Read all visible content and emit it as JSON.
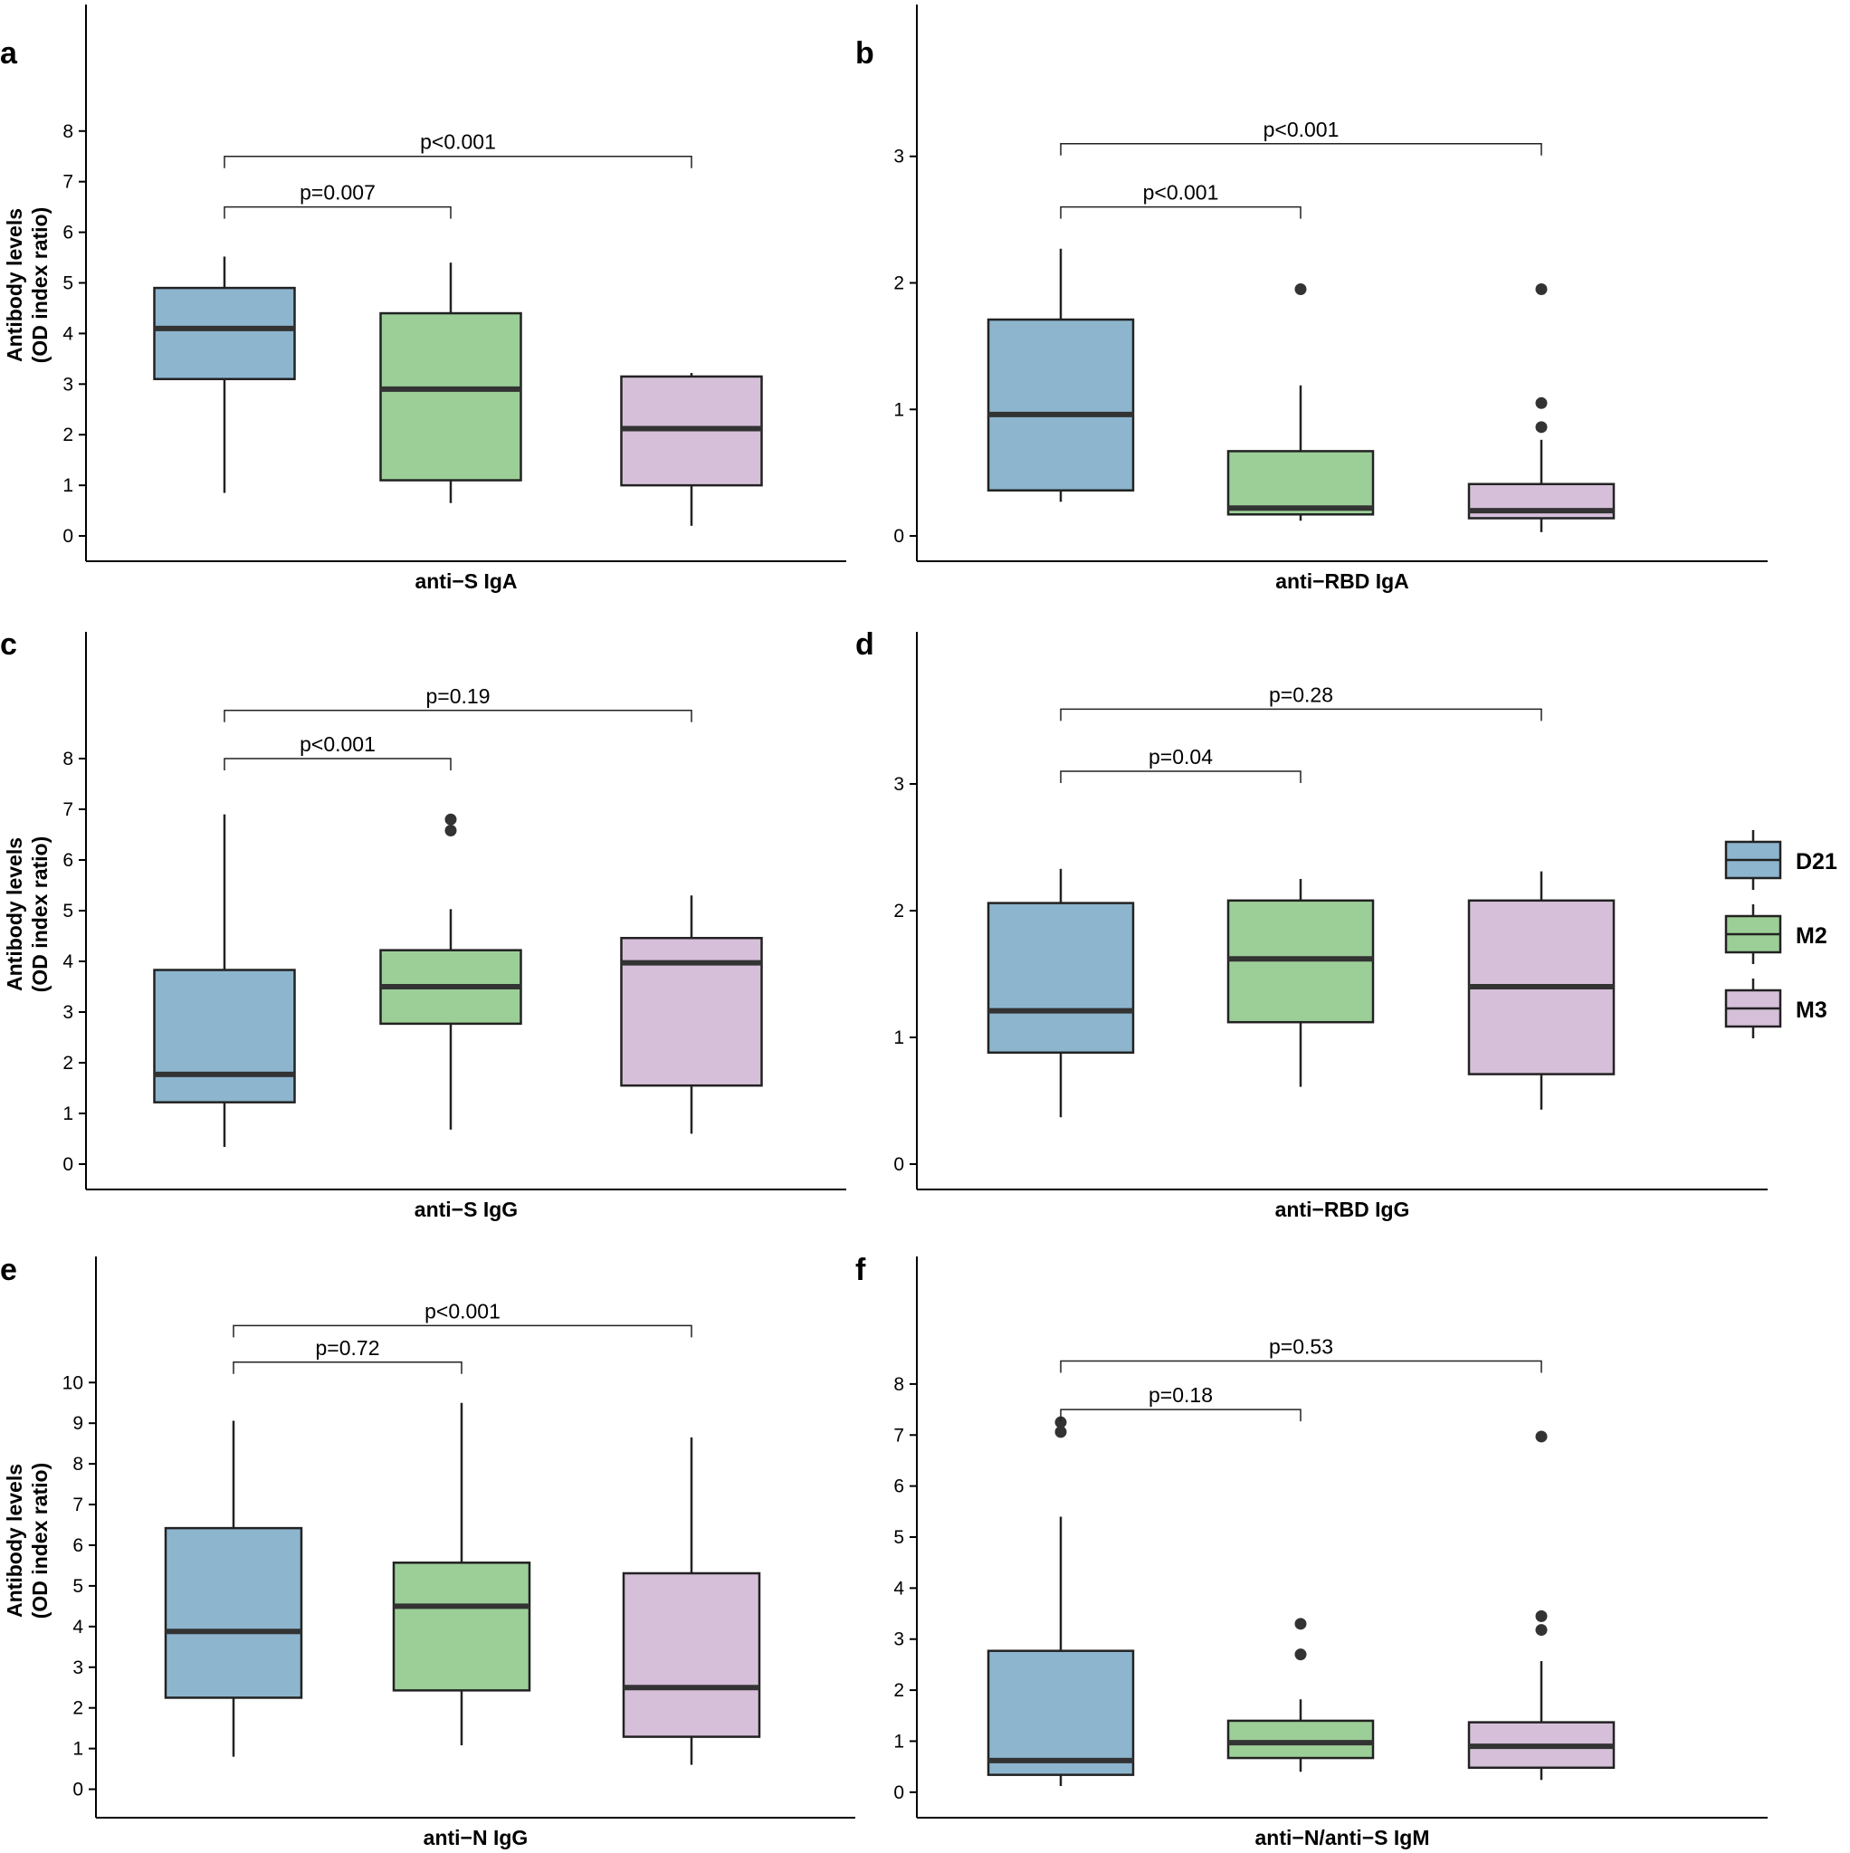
{
  "chart_data": [
    {
      "panel": "a",
      "type": "box",
      "xlabel": "anti−S IgA",
      "ylabel": [
        "Antibody levels",
        "(OD index ratio)"
      ],
      "ylim": [
        -0.5,
        10.5
      ],
      "yticks": [
        0,
        1,
        2,
        3,
        4,
        5,
        6,
        7,
        8
      ],
      "series": [
        {
          "name": "D21",
          "whisker_low": 0.85,
          "q1": 3.1,
          "median": 4.1,
          "q3": 4.9,
          "whisker_high": 5.52,
          "outliers": []
        },
        {
          "name": "M2",
          "whisker_low": 0.65,
          "q1": 1.1,
          "median": 2.9,
          "q3": 4.4,
          "whisker_high": 5.4,
          "outliers": []
        },
        {
          "name": "M3",
          "whisker_low": 0.2,
          "q1": 1.0,
          "median": 2.12,
          "q3": 3.15,
          "whisker_high": 3.22,
          "outliers": []
        }
      ],
      "comparisons": [
        {
          "from": "D21",
          "to": "M2",
          "label": "p=0.007",
          "y": 6.5
        },
        {
          "from": "D21",
          "to": "M3",
          "label": "p<0.001",
          "y": 7.5
        }
      ]
    },
    {
      "panel": "b",
      "type": "box",
      "xlabel": "anti−RBD IgA",
      "ylim": [
        -0.2,
        4.2
      ],
      "yticks": [
        0,
        1,
        2,
        3
      ],
      "series": [
        {
          "name": "D21",
          "whisker_low": 0.27,
          "q1": 0.36,
          "median": 0.96,
          "q3": 1.71,
          "whisker_high": 2.27,
          "outliers": []
        },
        {
          "name": "M2",
          "whisker_low": 0.12,
          "q1": 0.17,
          "median": 0.22,
          "q3": 0.67,
          "whisker_high": 1.19,
          "outliers": [
            1.95
          ]
        },
        {
          "name": "M3",
          "whisker_low": 0.03,
          "q1": 0.14,
          "median": 0.2,
          "q3": 0.41,
          "whisker_high": 0.76,
          "outliers": [
            0.86,
            1.05,
            1.95
          ]
        }
      ],
      "comparisons": [
        {
          "from": "D21",
          "to": "M2",
          "label": "p<0.001",
          "y": 2.6
        },
        {
          "from": "D21",
          "to": "M3",
          "label": "p<0.001",
          "y": 3.1
        }
      ]
    },
    {
      "panel": "c",
      "type": "box",
      "xlabel": "anti−S IgG",
      "ylabel": [
        "Antibody levels",
        "(OD index ratio)"
      ],
      "ylim": [
        -0.5,
        10.5
      ],
      "yticks": [
        0,
        1,
        2,
        3,
        4,
        5,
        6,
        7,
        8
      ],
      "series": [
        {
          "name": "D21",
          "whisker_low": 0.34,
          "q1": 1.22,
          "median": 1.77,
          "q3": 3.83,
          "whisker_high": 6.9,
          "outliers": []
        },
        {
          "name": "M2",
          "whisker_low": 0.68,
          "q1": 2.77,
          "median": 3.5,
          "q3": 4.22,
          "whisker_high": 5.03,
          "outliers": [
            6.58,
            6.8
          ]
        },
        {
          "name": "M3",
          "whisker_low": 0.6,
          "q1": 1.55,
          "median": 3.97,
          "q3": 4.46,
          "whisker_high": 5.3,
          "outliers": []
        }
      ],
      "comparisons": [
        {
          "from": "D21",
          "to": "M2",
          "label": "p<0.001",
          "y": 8.0
        },
        {
          "from": "D21",
          "to": "M3",
          "label": "p=0.19",
          "y": 8.95
        }
      ]
    },
    {
      "panel": "d",
      "type": "box",
      "xlabel": "anti−RBD IgG",
      "ylim": [
        -0.2,
        4.2
      ],
      "yticks": [
        0,
        1,
        2,
        3
      ],
      "series": [
        {
          "name": "D21",
          "whisker_low": 0.37,
          "q1": 0.88,
          "median": 1.21,
          "q3": 2.06,
          "whisker_high": 2.33,
          "outliers": []
        },
        {
          "name": "M2",
          "whisker_low": 0.61,
          "q1": 1.12,
          "median": 1.62,
          "q3": 2.08,
          "whisker_high": 2.25,
          "outliers": []
        },
        {
          "name": "M3",
          "whisker_low": 0.43,
          "q1": 0.71,
          "median": 1.4,
          "q3": 2.08,
          "whisker_high": 2.31,
          "outliers": []
        }
      ],
      "comparisons": [
        {
          "from": "D21",
          "to": "M2",
          "label": "p=0.04",
          "y": 3.1
        },
        {
          "from": "D21",
          "to": "M3",
          "label": "p=0.28",
          "y": 3.59
        }
      ]
    },
    {
      "panel": "e",
      "type": "box",
      "xlabel": "anti−N IgG",
      "ylabel": [
        "Antibody levels",
        "(OD index ratio)"
      ],
      "ylim": [
        -0.7,
        13.1
      ],
      "yticks": [
        0,
        1,
        2,
        3,
        4,
        5,
        6,
        7,
        8,
        9,
        10
      ],
      "series": [
        {
          "name": "D21",
          "whisker_low": 0.8,
          "q1": 2.25,
          "median": 3.88,
          "q3": 6.42,
          "whisker_high": 9.06,
          "outliers": []
        },
        {
          "name": "M2",
          "whisker_low": 1.08,
          "q1": 2.43,
          "median": 4.5,
          "q3": 5.57,
          "whisker_high": 9.5,
          "outliers": []
        },
        {
          "name": "M3",
          "whisker_low": 0.6,
          "q1": 1.29,
          "median": 2.5,
          "q3": 5.31,
          "whisker_high": 8.65,
          "outliers": []
        }
      ],
      "comparisons": [
        {
          "from": "D21",
          "to": "M2",
          "label": "p=0.72",
          "y": 10.5
        },
        {
          "from": "D21",
          "to": "M3",
          "label": "p<0.001",
          "y": 11.4
        }
      ]
    },
    {
      "panel": "f",
      "type": "box",
      "xlabel": "anti−N/anti−S IgM",
      "ylim": [
        -0.5,
        10.5
      ],
      "yticks": [
        0,
        1,
        2,
        3,
        4,
        5,
        6,
        7,
        8
      ],
      "series": [
        {
          "name": "D21",
          "whisker_low": 0.12,
          "q1": 0.34,
          "median": 0.62,
          "q3": 2.77,
          "whisker_high": 5.4,
          "outliers": [
            7.06,
            7.25
          ]
        },
        {
          "name": "M2",
          "whisker_low": 0.4,
          "q1": 0.67,
          "median": 0.97,
          "q3": 1.4,
          "whisker_high": 1.82,
          "outliers": [
            2.7,
            3.3
          ]
        },
        {
          "name": "M3",
          "whisker_low": 0.24,
          "q1": 0.48,
          "median": 0.9,
          "q3": 1.37,
          "whisker_high": 2.57,
          "outliers": [
            3.18,
            3.45,
            6.97
          ]
        }
      ],
      "comparisons": [
        {
          "from": "D21",
          "to": "M2",
          "label": "p=0.18",
          "y": 7.5
        },
        {
          "from": "D21",
          "to": "M3",
          "label": "p=0.53",
          "y": 8.45
        }
      ]
    }
  ],
  "legend": {
    "items": [
      {
        "label": "D21",
        "color": "#8db5ce"
      },
      {
        "label": "M2",
        "color": "#9ccf98"
      },
      {
        "label": "M3",
        "color": "#d6bfd9"
      }
    ]
  }
}
